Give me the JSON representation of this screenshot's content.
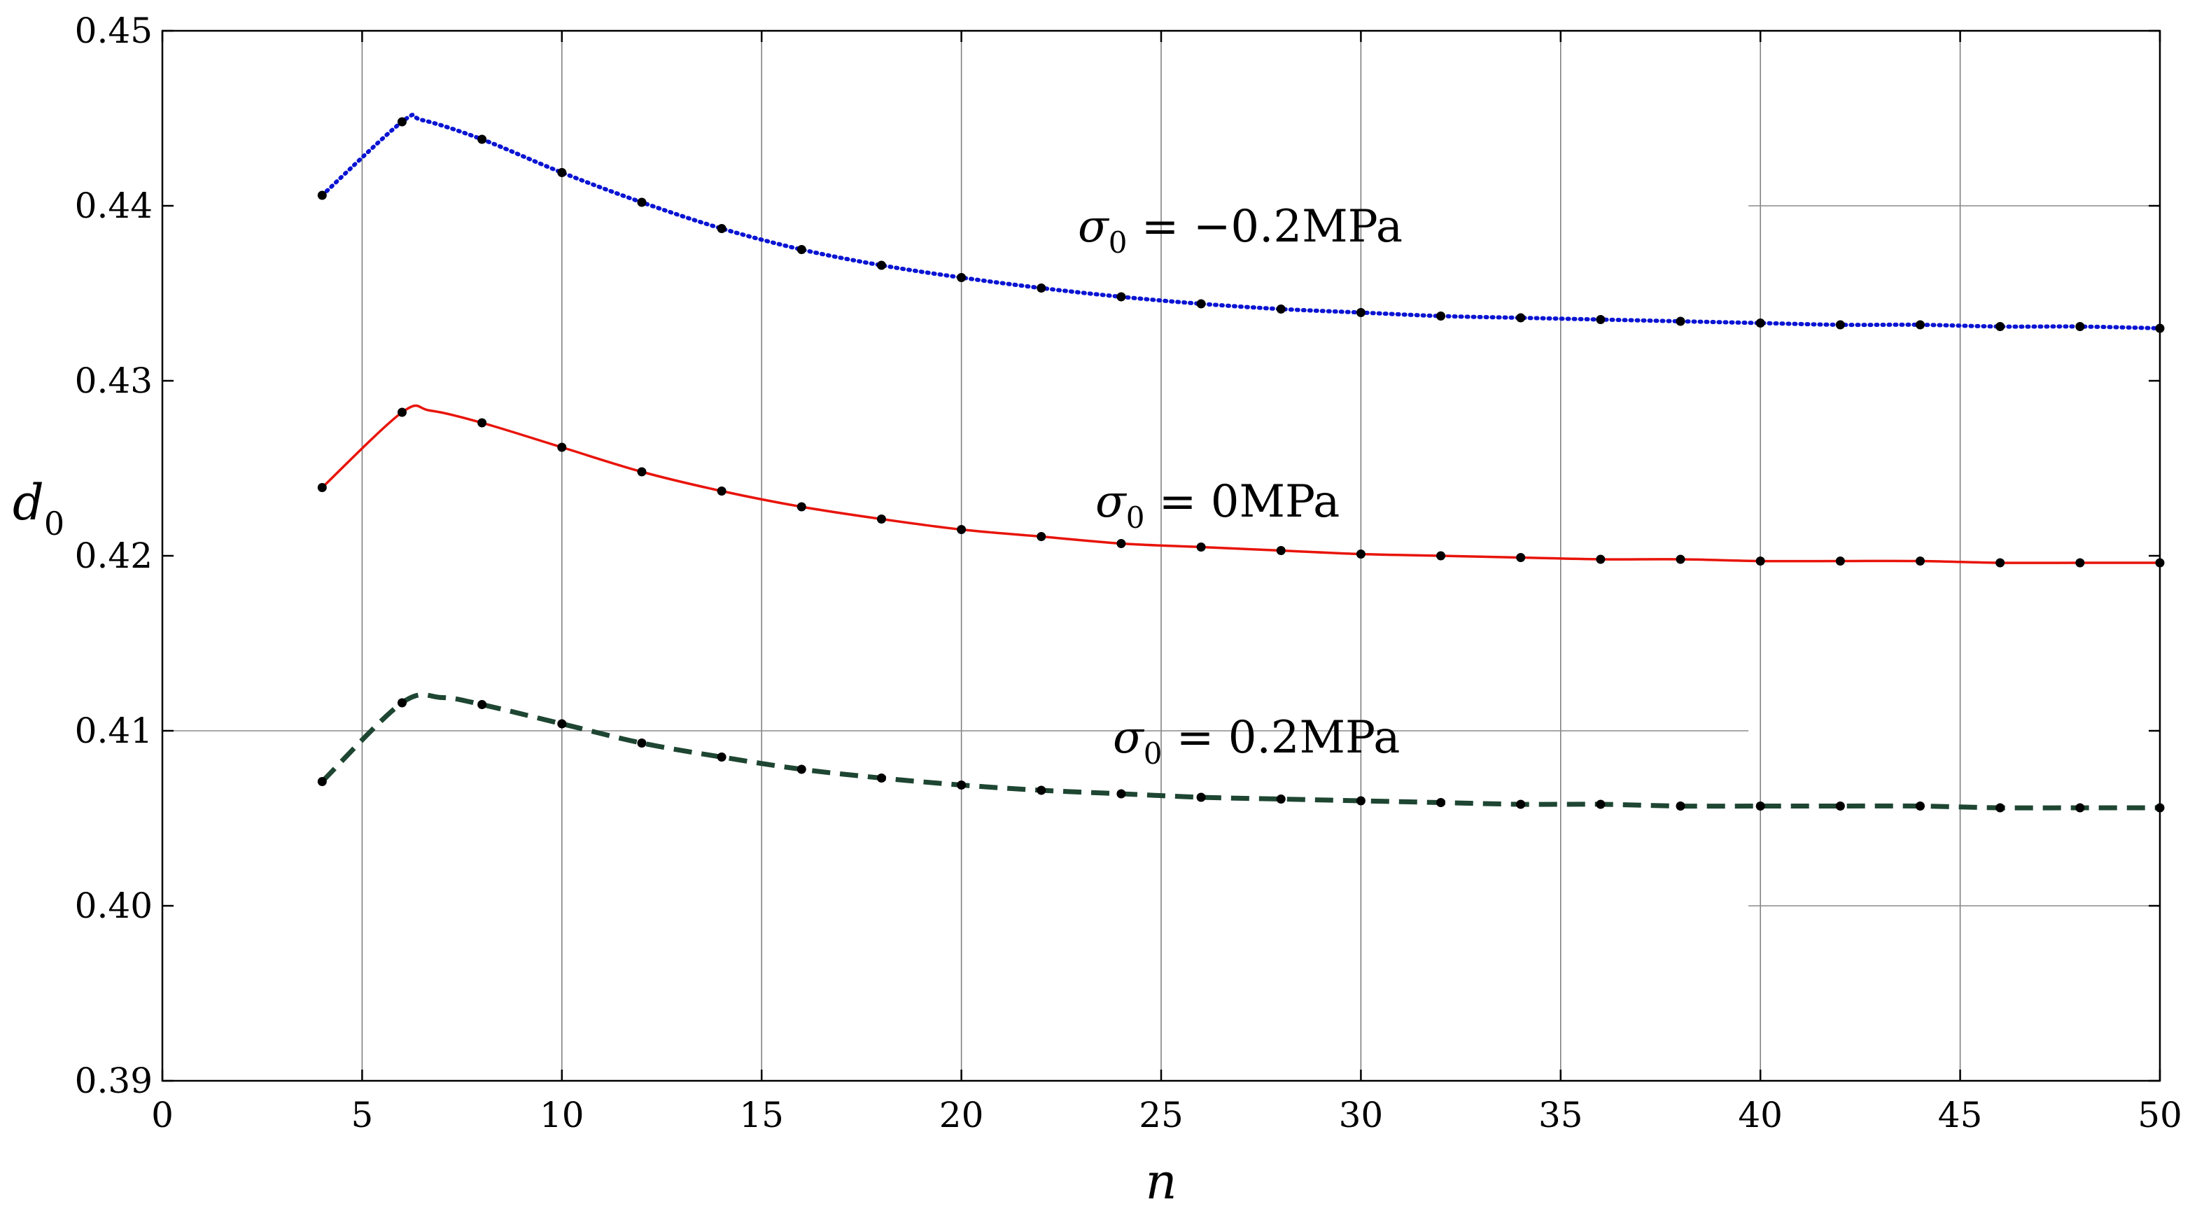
{
  "chart_data": {
    "type": "line",
    "title": "",
    "xlabel": "n",
    "ylabel": "d",
    "ylabel_subscript": "0",
    "xlim": [
      0,
      50
    ],
    "ylim": [
      0.39,
      0.45
    ],
    "xticks": [
      0,
      5,
      10,
      15,
      20,
      25,
      30,
      35,
      40,
      45,
      50
    ],
    "xtick_labels": [
      "0",
      "5",
      "10",
      "15",
      "20",
      "25",
      "30",
      "35",
      "40",
      "45",
      "50"
    ],
    "yticks": [
      0.39,
      0.4,
      0.41,
      0.42,
      0.43,
      0.44,
      0.45
    ],
    "ytick_labels": [
      "0.39",
      "0.40",
      "0.41",
      "0.42",
      "0.43",
      "0.44",
      "0.45"
    ],
    "grid": true,
    "series": [
      {
        "name": "σ0 = −0.2MPa",
        "label_symbol": "σ",
        "label_subscript": "0",
        "label_text": " = −0.2MPa",
        "color": "#0a14d2",
        "style": "dotted",
        "x": [
          4,
          6,
          8,
          10,
          12,
          14,
          16,
          18,
          20,
          22,
          24,
          26,
          28,
          30,
          32,
          34,
          36,
          38,
          40,
          42,
          44,
          46,
          48,
          50
        ],
        "values": [
          0.4406,
          0.4448,
          0.4438,
          0.4419,
          0.4402,
          0.4387,
          0.4375,
          0.4366,
          0.4359,
          0.4353,
          0.4348,
          0.4344,
          0.4341,
          0.4339,
          0.4337,
          0.4336,
          0.4335,
          0.4334,
          0.4333,
          0.4332,
          0.4332,
          0.4331,
          0.4331,
          0.433
        ],
        "peak": [
          6.5,
          0.4449
        ]
      },
      {
        "name": "σ0 = 0MPa",
        "label_symbol": "σ",
        "label_subscript": "0",
        "label_text": " = 0MPa",
        "color": "#e8140a",
        "style": "solid",
        "x": [
          4,
          6,
          8,
          10,
          12,
          14,
          16,
          18,
          20,
          22,
          24,
          26,
          28,
          30,
          32,
          34,
          36,
          38,
          40,
          42,
          44,
          46,
          48,
          50
        ],
        "values": [
          0.4239,
          0.4282,
          0.4276,
          0.4262,
          0.4248,
          0.4237,
          0.4228,
          0.4221,
          0.4215,
          0.4211,
          0.4207,
          0.4205,
          0.4203,
          0.4201,
          0.42,
          0.4199,
          0.4198,
          0.4198,
          0.4197,
          0.4197,
          0.4197,
          0.4196,
          0.4196,
          0.4196
        ],
        "peak": [
          6.7,
          0.4283
        ]
      },
      {
        "name": "σ0 = 0.2MPa",
        "label_symbol": "σ",
        "label_subscript": "0",
        "label_text": " = 0.2MPa",
        "color": "#1e4632",
        "style": "dashed",
        "x": [
          4,
          6,
          8,
          10,
          12,
          14,
          16,
          18,
          20,
          22,
          24,
          26,
          28,
          30,
          32,
          34,
          36,
          38,
          40,
          42,
          44,
          46,
          48,
          50
        ],
        "values": [
          0.4071,
          0.4116,
          0.4115,
          0.4104,
          0.4093,
          0.4085,
          0.4078,
          0.4073,
          0.4069,
          0.4066,
          0.4064,
          0.4062,
          0.4061,
          0.406,
          0.4059,
          0.4058,
          0.4058,
          0.4057,
          0.4057,
          0.4057,
          0.4057,
          0.4056,
          0.4056,
          0.4056
        ],
        "peak": [
          7.0,
          0.4119
        ]
      }
    ]
  }
}
